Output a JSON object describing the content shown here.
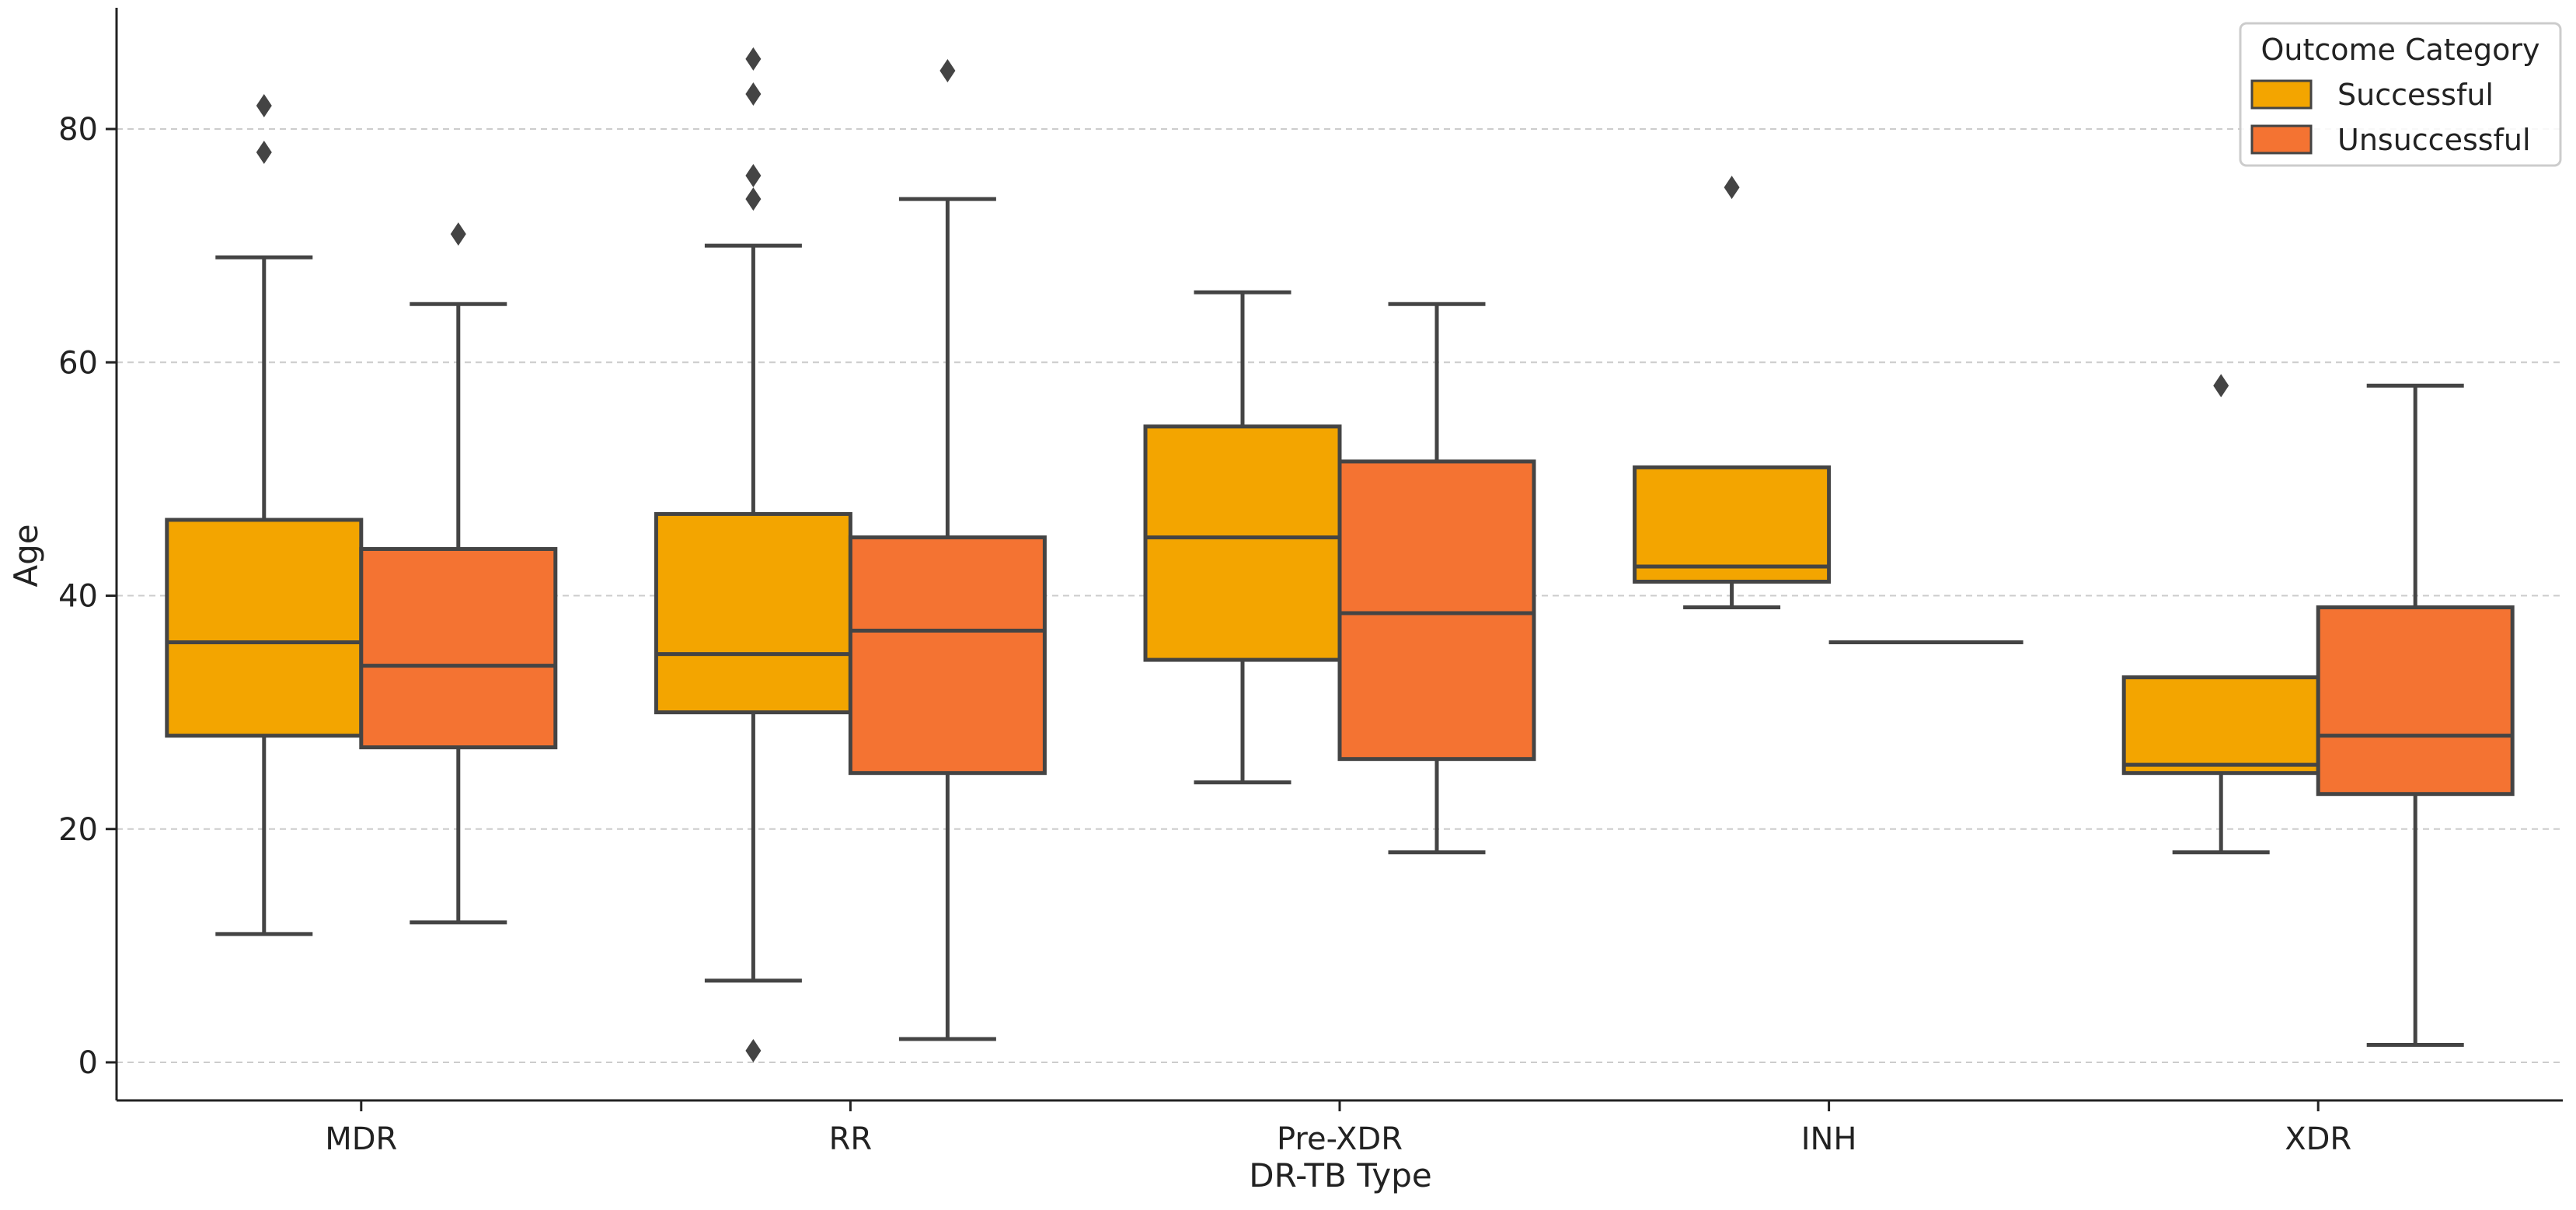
{
  "chart_data": {
    "type": "boxplot",
    "title": "",
    "xlabel": "DR-TB Type",
    "ylabel": "Age",
    "ylim": [
      -3.5,
      90
    ],
    "yticks": [
      0,
      20,
      40,
      60,
      80
    ],
    "grid": "y-dashed",
    "categories": [
      "MDR",
      "RR",
      "Pre-XDR",
      "INH",
      "XDR"
    ],
    "legend": {
      "title": "Outcome Category",
      "position": "top-right",
      "entries": [
        "Successful",
        "Unsuccessful"
      ]
    },
    "series": [
      {
        "name": "Successful",
        "color": "#f3a500",
        "boxes": [
          {
            "category": "MDR",
            "whisker_low": 11,
            "q1": 28,
            "median": 36,
            "q3": 46.5,
            "whisker_high": 69,
            "outliers": [
              78,
              82
            ]
          },
          {
            "category": "RR",
            "whisker_low": 7,
            "q1": 30,
            "median": 35,
            "q3": 47,
            "whisker_high": 70,
            "outliers": [
              1,
              74,
              76,
              83,
              86
            ]
          },
          {
            "category": "Pre-XDR",
            "whisker_low": 24,
            "q1": 34.5,
            "median": 45,
            "q3": 54.5,
            "whisker_high": 66,
            "outliers": []
          },
          {
            "category": "INH",
            "whisker_low": 39,
            "q1": 41.2,
            "median": 42.5,
            "q3": 51,
            "whisker_high": 51,
            "outliers": [
              75
            ]
          },
          {
            "category": "XDR",
            "whisker_low": 18,
            "q1": 24.8,
            "median": 25.5,
            "q3": 33,
            "whisker_high": 33,
            "outliers": [
              58
            ]
          }
        ]
      },
      {
        "name": "Unsuccessful",
        "color": "#f47332",
        "boxes": [
          {
            "category": "MDR",
            "whisker_low": 12,
            "q1": 27,
            "median": 34,
            "q3": 44,
            "whisker_high": 65,
            "outliers": [
              71
            ]
          },
          {
            "category": "RR",
            "whisker_low": 2,
            "q1": 24.8,
            "median": 37,
            "q3": 45,
            "whisker_high": 74,
            "outliers": [
              85
            ]
          },
          {
            "category": "Pre-XDR",
            "whisker_low": 18,
            "q1": 26,
            "median": 38.5,
            "q3": 51.5,
            "whisker_high": 65,
            "outliers": []
          },
          {
            "category": "INH",
            "whisker_low": 36,
            "q1": 36,
            "median": 36,
            "q3": 36,
            "whisker_high": 36,
            "outliers": []
          },
          {
            "category": "XDR",
            "whisker_low": 1.5,
            "q1": 23,
            "median": 28,
            "q3": 39,
            "whisker_high": 58,
            "outliers": []
          }
        ]
      }
    ]
  }
}
